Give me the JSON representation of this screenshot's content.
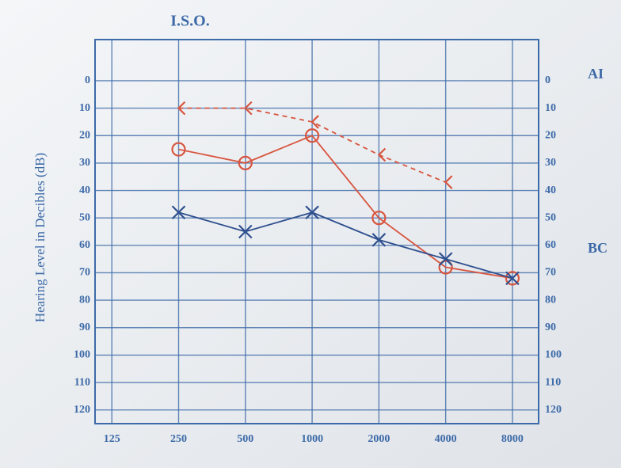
{
  "chart_data": {
    "type": "line",
    "title": "I.S.O.",
    "y_label": "Hearing Level in Decibles (dB)",
    "annotations": [
      "AI",
      "BC"
    ],
    "x": [
      250,
      500,
      1000,
      2000,
      4000,
      8000
    ],
    "x_log": true,
    "xlim": [
      105,
      10500
    ],
    "xticks": [
      125,
      250,
      500,
      1000,
      2000,
      4000,
      8000
    ],
    "ylim": [
      -15,
      125
    ],
    "y_reversed": true,
    "yticks": [
      0,
      10,
      20,
      30,
      40,
      50,
      60,
      70,
      80,
      90,
      100,
      110,
      120
    ],
    "grid": true,
    "series": [
      {
        "color": "#d8553f",
        "marker": "o",
        "dash": false,
        "values": [
          25,
          30,
          20,
          50,
          68,
          72
        ]
      },
      {
        "color": "#2e4f8e",
        "marker": "x",
        "dash": false,
        "values": [
          48,
          55,
          48,
          58,
          65,
          72
        ]
      },
      {
        "color": "#d8553f",
        "marker": "<",
        "dash": true,
        "values": [
          10,
          10,
          15,
          27,
          37,
          null
        ]
      }
    ]
  }
}
